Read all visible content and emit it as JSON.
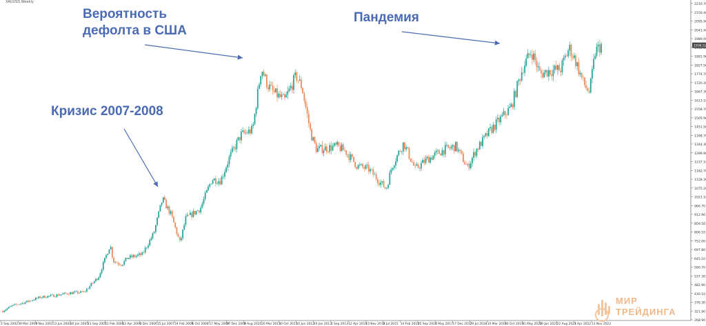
{
  "window": {
    "symbol_line": "XAUUSD,Weekly"
  },
  "annotations": {
    "crisis": "Кризис 2007-2008",
    "default_line1": "Вероятность",
    "default_line2": "дефолта в США",
    "pandemic": "Пандемия"
  },
  "logo": {
    "line1": "МИР",
    "line2": "ТРЕЙДИНГА"
  },
  "colors": {
    "bull": "#26a69a",
    "bear": "#ef8a5a",
    "annotation": "#4a6bb3",
    "price_badge": "#4a4a4a"
  },
  "chart_data": {
    "type": "line",
    "title": "",
    "xlabel": "",
    "ylabel": "",
    "ylim": [
      270,
      2200
    ],
    "current_price": "1936.52",
    "y_ticks": [
      "2210.70",
      "2150.40",
      "2095.90",
      "2041.40",
      "1989.00",
      "1935.00",
      "1881.90",
      "1827.50",
      "1774.70",
      "1720.20",
      "1667.30",
      "1613.10",
      "1558.70",
      "1505.90",
      "1451.50",
      "1398.70",
      "1344.30",
      "1289.90",
      "1237.10",
      "1182.70",
      "1128.30",
      "1075.20",
      "1021.10",
      "966.70",
      "912.90",
      "859.50",
      "806.10",
      "752.00",
      "697.80",
      "645.10",
      "590.70",
      "537.30",
      "482.90",
      "430.10",
      "376.30",
      "321.90",
      "268.90"
    ],
    "x_ticks": [
      "2 Sep 2002",
      "30 Mar 2003",
      "9 Nov 2003",
      "13 Jun 2004",
      "16 Jan 2005",
      "11 Sep 2005",
      "11 Feb 2006",
      "23 Apr 2006",
      "3 Dec 2006",
      "15 Jul 2007",
      "24 Feb 2008",
      "5 Oct 2008",
      "17 May 2009",
      "27 Dec 2009",
      "8 Aug 2010",
      "20 Mar 2011",
      "30 Oct 2011",
      "10 Jun 2012",
      "20 Jan 2013",
      "1 Sep 2013",
      "12 Apr 2014",
      "23 Nov 2014",
      "5 Jul 2015",
      "14 Feb 2016",
      "25 Sep 2016",
      "7 May 2017",
      "17 Dec 2017",
      "29 Jul 2018",
      "10 Mar 2019",
      "20 Oct 2019",
      "31 May 2020",
      "10 Jan 2021",
      "22 Aug 2021",
      "3 Apr 2022",
      "13 Nov 2022"
    ],
    "x": [
      2002.7,
      2003.0,
      2003.5,
      2004.0,
      2004.5,
      2005.0,
      2005.5,
      2006.0,
      2006.4,
      2006.5,
      2006.8,
      2007.0,
      2007.5,
      2007.9,
      2008.2,
      2008.5,
      2008.8,
      2009.0,
      2009.5,
      2009.9,
      2010.2,
      2010.5,
      2010.9,
      2011.3,
      2011.6,
      2011.8,
      2012.0,
      2012.4,
      2012.8,
      2013.0,
      2013.3,
      2013.5,
      2013.9,
      2014.2,
      2014.5,
      2014.9,
      2015.3,
      2015.9,
      2016.1,
      2016.5,
      2016.9,
      2017.3,
      2017.7,
      2017.9,
      2018.3,
      2018.7,
      2019.0,
      2019.5,
      2019.9,
      2020.2,
      2020.6,
      2020.9,
      2021.2,
      2021.5,
      2021.9,
      2022.2,
      2022.4,
      2022.7,
      2022.9,
      2023.1,
      2023.3
    ],
    "series": [
      {
        "values": [
          315,
          345,
          370,
          400,
          410,
          425,
          430,
          525,
          720,
          620,
          600,
          640,
          660,
          790,
          1000,
          900,
          730,
          880,
          940,
          1120,
          1110,
          1250,
          1390,
          1420,
          1800,
          1700,
          1650,
          1600,
          1750,
          1680,
          1400,
          1300,
          1310,
          1320,
          1290,
          1200,
          1180,
          1060,
          1200,
          1340,
          1180,
          1240,
          1280,
          1300,
          1320,
          1190,
          1300,
          1420,
          1500,
          1560,
          1800,
          1900,
          1760,
          1780,
          1790,
          1920,
          1850,
          1700,
          1650,
          1900,
          1936
        ]
      }
    ]
  }
}
